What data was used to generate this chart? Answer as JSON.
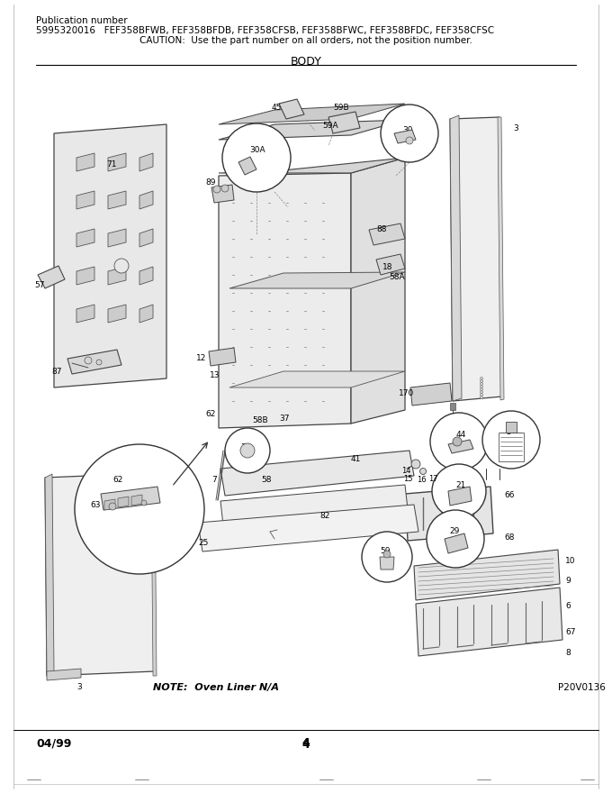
{
  "title": "BODY",
  "pub_line1": "Publication number",
  "pub_line2": "5995320016   FEF358BFWB, FEF358BFDB, FEF358CFSB, FEF358BFWC, FEF358BFDC, FEF358CFSC",
  "pub_line3": "CAUTION:  Use the part number on all orders, not the position number.",
  "footer_left": "04/99",
  "footer_center": "4",
  "footer_right": "P20V0136",
  "note_text": "NOTE:  Oven Liner N/A",
  "bg_color": "#ffffff",
  "border_color": "#000000",
  "text_color": "#000000",
  "gray_light": "#d8d8d8",
  "gray_mid": "#b0b0b0",
  "gray_dark": "#888888",
  "line_color": "#333333"
}
